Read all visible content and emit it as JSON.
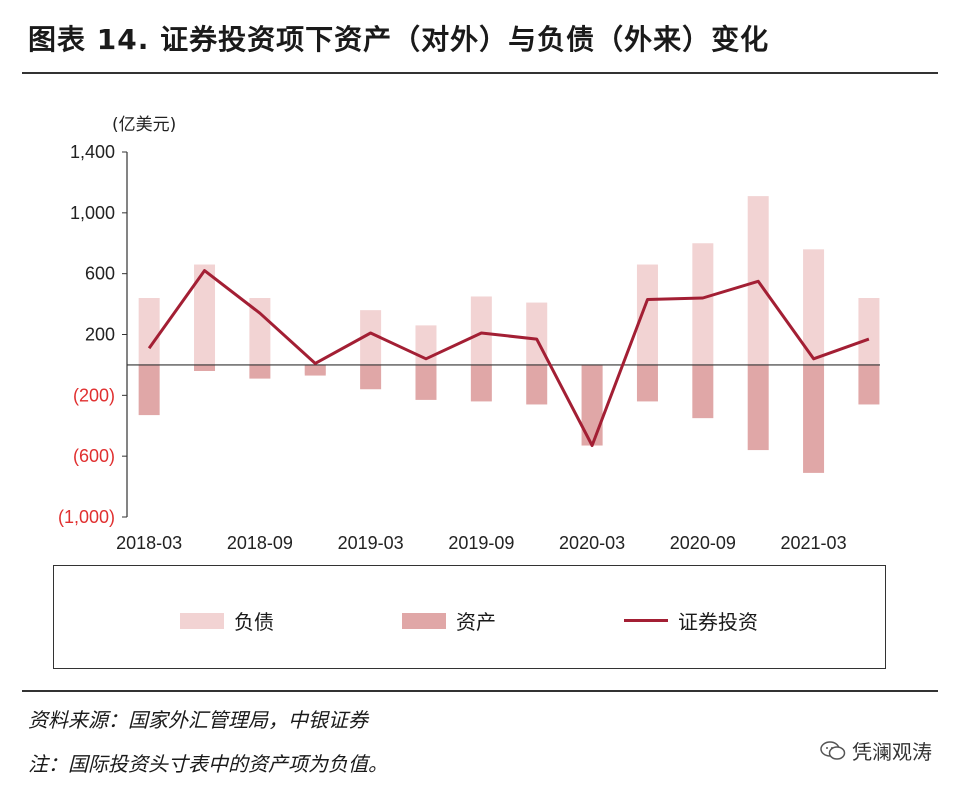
{
  "title": "图表 14. 证券投资项下资产（对外）与负债（外来）变化",
  "unit": "(亿美元)",
  "notes": {
    "source": "资料来源：国家外汇管理局，中银证券",
    "note": "注：国际投资头寸表中的资产项为负值。"
  },
  "watermark": "凭澜观涛",
  "colors": {
    "liabilities": "#f2d3d3",
    "assets": "#e0a7a7",
    "portfolio": "#a31f34",
    "negative_tick": "#e03030"
  },
  "chart_data": {
    "type": "bar",
    "title": "图表 14. 证券投资项下资产（对外）与负债（外来）变化",
    "ylabel": "(亿美元)",
    "ylim": [
      -1000,
      1400
    ],
    "yticks": [
      1400,
      1000,
      600,
      200,
      -200,
      -600,
      -1000
    ],
    "ytick_labels": [
      "1,400",
      "1,000",
      "600",
      "200",
      "(200)",
      "(600)",
      "(1,000)"
    ],
    "categories": [
      "2018-03",
      "2018-06",
      "2018-09",
      "2018-12",
      "2019-03",
      "2019-06",
      "2019-09",
      "2019-12",
      "2020-03",
      "2020-06",
      "2020-09",
      "2020-12",
      "2021-03",
      "2021-06"
    ],
    "xtick_labels": [
      "2018-03",
      "2018-09",
      "2019-03",
      "2019-09",
      "2020-03",
      "2020-09",
      "2021-03"
    ],
    "series": [
      {
        "name": "负债",
        "type": "bar",
        "values": [
          440,
          660,
          440,
          -60,
          360,
          260,
          450,
          410,
          -530,
          660,
          800,
          1110,
          760,
          440
        ]
      },
      {
        "name": "资产",
        "type": "bar",
        "values": [
          -330,
          -40,
          -90,
          -70,
          -160,
          -230,
          -240,
          -260,
          -530,
          -240,
          -350,
          -560,
          -710,
          -260
        ]
      },
      {
        "name": "证券投资",
        "type": "line",
        "values": [
          110,
          620,
          340,
          10,
          210,
          40,
          210,
          170,
          -530,
          430,
          440,
          550,
          40,
          170
        ]
      }
    ],
    "grid": false,
    "legend": "bottom"
  }
}
